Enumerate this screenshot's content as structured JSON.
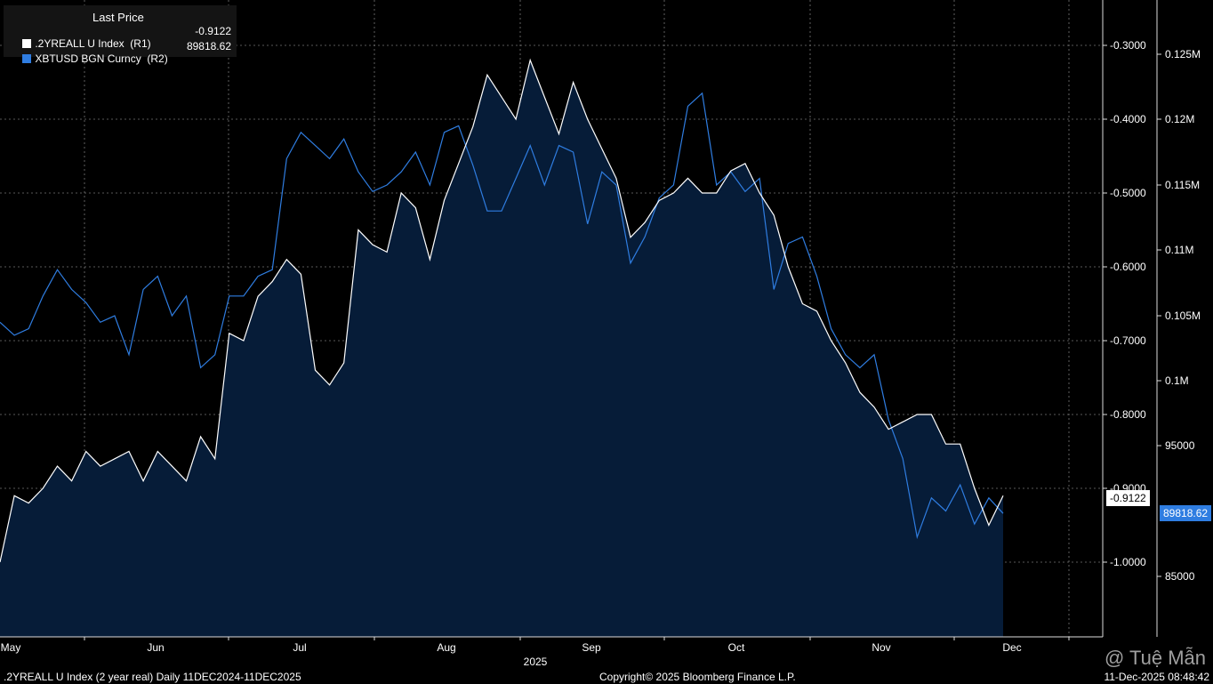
{
  "legend": {
    "header": "Last Price",
    "series": [
      {
        "label": ".2YREALL U Index  (R1)",
        "value": "-0.9122",
        "color": "#ffffff"
      },
      {
        "label": "XBTUSD BGN Curncy  (R2)",
        "value": "89818.62",
        "color": "#2f7de1"
      }
    ]
  },
  "chart_data": {
    "type": "area",
    "x_tick_labels": [
      "May",
      "Jun",
      "Jul",
      "Aug",
      "Sep",
      "Oct",
      "Nov",
      "Dec"
    ],
    "x_sub_label": "2025",
    "r1_axis": {
      "ticks": [
        "-0.3000",
        "-0.4000",
        "-0.5000",
        "-0.6000",
        "-0.7000",
        "-0.8000",
        "-0.9000",
        "-1.0000"
      ],
      "ylim": [
        -1.1,
        -0.3
      ],
      "inverted": true
    },
    "r2_axis": {
      "ticks": [
        "0.125M",
        "0.12M",
        "0.115M",
        "0.11M",
        "0.105M",
        "0.1M",
        "95000",
        "85000"
      ],
      "values": [
        125000,
        120000,
        115000,
        110000,
        105000,
        100000,
        95000,
        85000
      ]
    },
    "series": [
      {
        "name": ".2YREALL U Index",
        "axis": "R1",
        "color": "#ffffff",
        "fill": "#061c38",
        "last": "-0.9122",
        "x": [
          0,
          3,
          6,
          9,
          12,
          15,
          18,
          21,
          24,
          27,
          30,
          33,
          36,
          39,
          42,
          45,
          48,
          51,
          54,
          57,
          60,
          63,
          66,
          69,
          72,
          75,
          78,
          81,
          84,
          87,
          90,
          93,
          96,
          99,
          102,
          105,
          108,
          111,
          114,
          117,
          120,
          123,
          126,
          129,
          132,
          135,
          138,
          141,
          144,
          147,
          150,
          153,
          156,
          159,
          162,
          165,
          168,
          171,
          174,
          177,
          180,
          183,
          186,
          189,
          192,
          195,
          198,
          201,
          204,
          207,
          210
        ],
        "values": [
          -1.0,
          -0.91,
          -0.92,
          -0.9,
          -0.87,
          -0.89,
          -0.85,
          -0.87,
          -0.86,
          -0.85,
          -0.89,
          -0.85,
          -0.87,
          -0.89,
          -0.83,
          -0.86,
          -0.69,
          -0.7,
          -0.64,
          -0.62,
          -0.59,
          -0.61,
          -0.74,
          -0.76,
          -0.73,
          -0.55,
          -0.57,
          -0.58,
          -0.5,
          -0.52,
          -0.59,
          -0.51,
          -0.46,
          -0.41,
          -0.34,
          -0.37,
          -0.4,
          -0.32,
          -0.37,
          -0.42,
          -0.35,
          -0.4,
          -0.44,
          -0.48,
          -0.56,
          -0.54,
          -0.51,
          -0.5,
          -0.48,
          -0.5,
          -0.5,
          -0.47,
          -0.46,
          -0.5,
          -0.53,
          -0.6,
          -0.65,
          -0.66,
          -0.7,
          -0.73,
          -0.77,
          -0.79,
          -0.82,
          -0.81,
          -0.8,
          -0.8,
          -0.84,
          -0.84,
          -0.9,
          -0.95,
          -0.91
        ]
      },
      {
        "name": "XBTUSD BGN Curncy",
        "axis": "R2",
        "color": "#2f7de1",
        "last": "89818.62",
        "x": [
          0,
          3,
          6,
          9,
          12,
          15,
          18,
          21,
          24,
          27,
          30,
          33,
          36,
          39,
          42,
          45,
          48,
          51,
          54,
          57,
          60,
          63,
          66,
          69,
          72,
          75,
          78,
          81,
          84,
          87,
          90,
          93,
          96,
          99,
          102,
          105,
          108,
          111,
          114,
          117,
          120,
          123,
          126,
          129,
          132,
          135,
          138,
          141,
          144,
          147,
          150,
          153,
          156,
          159,
          162,
          165,
          168,
          171,
          174,
          177,
          180,
          183,
          186,
          189,
          192,
          195,
          198,
          201,
          204,
          207,
          210
        ],
        "values": [
          104500,
          103500,
          104000,
          106500,
          108500,
          107000,
          106000,
          104500,
          105000,
          102000,
          107000,
          108000,
          105000,
          106500,
          101000,
          102000,
          106500,
          106500,
          108000,
          108500,
          117000,
          119000,
          118000,
          117000,
          118500,
          116000,
          114500,
          115000,
          116000,
          117500,
          115000,
          119000,
          119500,
          116500,
          113000,
          113000,
          115500,
          118000,
          115000,
          118000,
          117500,
          112000,
          116000,
          115000,
          109000,
          111000,
          114000,
          115000,
          121000,
          122000,
          115000,
          116000,
          114500,
          115500,
          107000,
          110500,
          111000,
          108000,
          104000,
          102000,
          101000,
          102000,
          97000,
          94000,
          88000,
          91000,
          90000,
          92000,
          89000,
          91000,
          89818.62
        ]
      }
    ]
  },
  "tags": {
    "r1_last": "-0.9122",
    "r2_last": "89818.62"
  },
  "footer": {
    "left": ".2YREALL U Index (2 year real) Daily 11DEC2024-11DEC2025",
    "center": "Copyright© 2025 Bloomberg Finance L.P.",
    "right": "11-Dec-2025 08:48:42"
  },
  "watermark": "@ Tuệ Mẫn"
}
